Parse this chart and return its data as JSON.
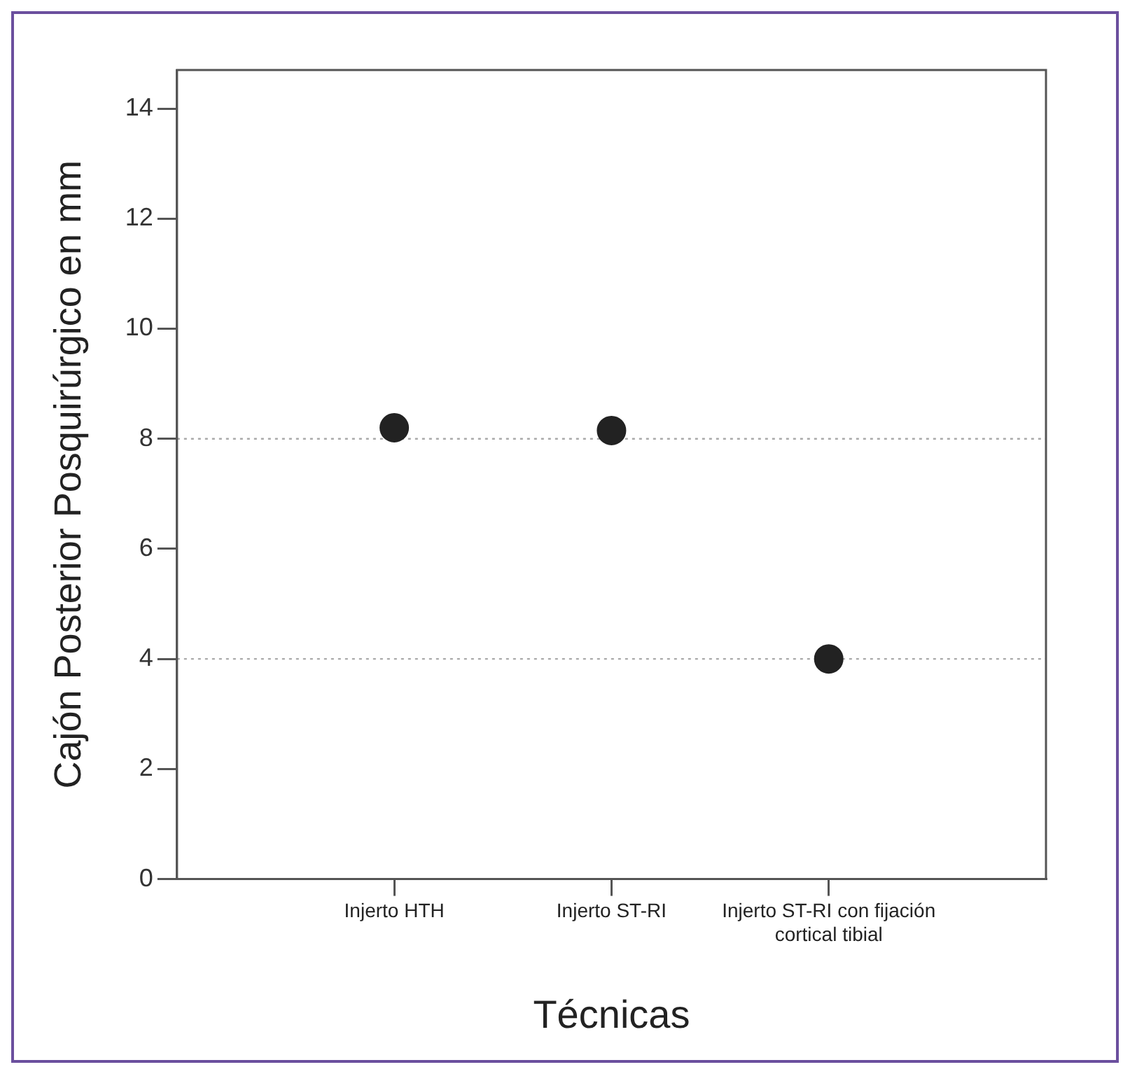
{
  "chart_data": {
    "type": "scatter",
    "xlabel": "Técnicas",
    "ylabel": "Cajón Posterior Posquirúrgico en mm",
    "categories": [
      "Injerto HTH",
      "Injerto ST-RI",
      "Injerto ST-RI con fijación cortical tibial"
    ],
    "series": [
      {
        "color": "#222222",
        "values": [
          8.2,
          8.15,
          4.0
        ]
      }
    ],
    "ylim": [
      0,
      14.7
    ],
    "yticks": [
      0,
      2,
      4,
      6,
      8,
      10,
      12,
      14
    ],
    "ref_lines": [
      {
        "axis": "y",
        "value": 8,
        "color": "#aaaaaa",
        "line_style": "dotted"
      },
      {
        "axis": "y",
        "value": 4,
        "color": "#aaaaaa",
        "line_style": "dotted"
      }
    ],
    "marker": "circle",
    "grid": false,
    "legend": false
  }
}
